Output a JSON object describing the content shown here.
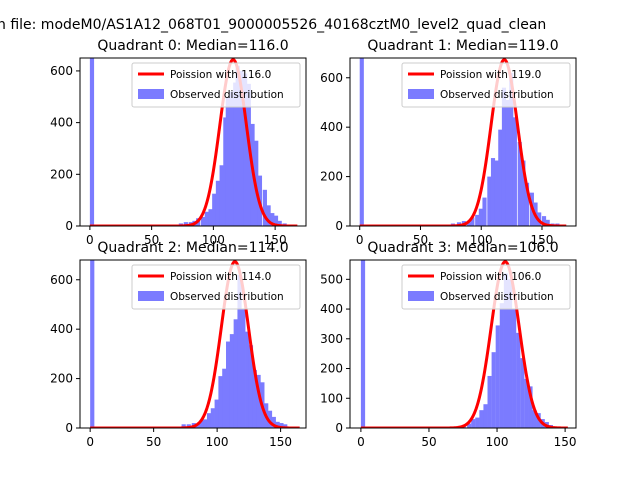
{
  "figure": {
    "suptitle": "n file: modeM0/AS1A12_068T01_9000005526_40168cztM0_level2_quad_clean"
  },
  "colors": {
    "histogram": "#7b7bff",
    "poisson_line": "#ff0000",
    "axes": "#000000"
  },
  "chart_data": [
    {
      "type": "bar",
      "title": "Quadrant 0: Median=116.0",
      "xlim": [
        -8,
        175
      ],
      "ylim": [
        0,
        650
      ],
      "xticks": [
        0,
        50,
        100,
        150
      ],
      "yticks": [
        0,
        200,
        400,
        600
      ],
      "bin_width": 3.4,
      "legend_position": "top-right",
      "series": [
        {
          "name": "Poission with 116.0",
          "kind": "line",
          "mean": 116.0,
          "x_range": [
            0,
            168
          ]
        },
        {
          "name": "Observed distribution",
          "kind": "histogram",
          "bins": [
            {
              "x": 0,
              "y": 650
            },
            {
              "x": 68,
              "y": 5
            },
            {
              "x": 72,
              "y": 10
            },
            {
              "x": 76,
              "y": 15
            },
            {
              "x": 80,
              "y": 15
            },
            {
              "x": 83,
              "y": 20
            },
            {
              "x": 86,
              "y": 30
            },
            {
              "x": 90,
              "y": 35
            },
            {
              "x": 93,
              "y": 55
            },
            {
              "x": 96,
              "y": 65
            },
            {
              "x": 99,
              "y": 125
            },
            {
              "x": 102,
              "y": 175
            },
            {
              "x": 105,
              "y": 235
            },
            {
              "x": 108,
              "y": 420
            },
            {
              "x": 110,
              "y": 500
            },
            {
              "x": 113,
              "y": 520
            },
            {
              "x": 116,
              "y": 555
            },
            {
              "x": 118,
              "y": 620
            },
            {
              "x": 121,
              "y": 600
            },
            {
              "x": 124,
              "y": 590
            },
            {
              "x": 127,
              "y": 550
            },
            {
              "x": 130,
              "y": 395
            },
            {
              "x": 133,
              "y": 330
            },
            {
              "x": 136,
              "y": 195
            },
            {
              "x": 140,
              "y": 140
            },
            {
              "x": 143,
              "y": 80
            },
            {
              "x": 146,
              "y": 50
            },
            {
              "x": 149,
              "y": 40
            },
            {
              "x": 152,
              "y": 20
            },
            {
              "x": 156,
              "y": 10
            },
            {
              "x": 160,
              "y": 5
            },
            {
              "x": 164,
              "y": 3
            }
          ]
        }
      ]
    },
    {
      "type": "bar",
      "title": "Quadrant 1: Median=119.0",
      "xlim": [
        -8,
        178
      ],
      "ylim": [
        0,
        680
      ],
      "xticks": [
        0,
        50,
        100,
        150
      ],
      "yticks": [
        0,
        200,
        400,
        600
      ],
      "bin_width": 3.4,
      "legend_position": "top-right",
      "series": [
        {
          "name": "Poission with 119.0",
          "kind": "line",
          "mean": 119.0,
          "x_range": [
            0,
            170
          ]
        },
        {
          "name": "Observed distribution",
          "kind": "histogram",
          "bins": [
            {
              "x": 0,
              "y": 680
            },
            {
              "x": 75,
              "y": 10
            },
            {
              "x": 80,
              "y": 15
            },
            {
              "x": 84,
              "y": 20
            },
            {
              "x": 88,
              "y": 15
            },
            {
              "x": 91,
              "y": 35
            },
            {
              "x": 95,
              "y": 45
            },
            {
              "x": 98,
              "y": 70
            },
            {
              "x": 101,
              "y": 115
            },
            {
              "x": 105,
              "y": 200
            },
            {
              "x": 108,
              "y": 275
            },
            {
              "x": 111,
              "y": 265
            },
            {
              "x": 114,
              "y": 390
            },
            {
              "x": 117,
              "y": 560
            },
            {
              "x": 120,
              "y": 510
            },
            {
              "x": 123,
              "y": 620
            },
            {
              "x": 126,
              "y": 440
            },
            {
              "x": 130,
              "y": 340
            },
            {
              "x": 133,
              "y": 265
            },
            {
              "x": 136,
              "y": 175
            },
            {
              "x": 140,
              "y": 135
            },
            {
              "x": 143,
              "y": 95
            },
            {
              "x": 146,
              "y": 55
            },
            {
              "x": 150,
              "y": 40
            },
            {
              "x": 153,
              "y": 25
            },
            {
              "x": 157,
              "y": 10
            },
            {
              "x": 161,
              "y": 10
            },
            {
              "x": 165,
              "y": 5
            }
          ]
        }
      ]
    },
    {
      "type": "bar",
      "title": "Quadrant 2: Median=114.0",
      "xlim": [
        -8,
        170
      ],
      "ylim": [
        0,
        680
      ],
      "xticks": [
        0,
        50,
        100,
        150
      ],
      "yticks": [
        0,
        200,
        400,
        600
      ],
      "bin_width": 3.3,
      "legend_position": "top-right",
      "series": [
        {
          "name": "Poission with 114.0",
          "kind": "line",
          "mean": 114.0,
          "x_range": [
            0,
            165
          ]
        },
        {
          "name": "Observed distribution",
          "kind": "histogram",
          "bins": [
            {
              "x": 0,
              "y": 680
            },
            {
              "x": 68,
              "y": 5
            },
            {
              "x": 72,
              "y": 15
            },
            {
              "x": 76,
              "y": 15
            },
            {
              "x": 80,
              "y": 20
            },
            {
              "x": 83,
              "y": 15
            },
            {
              "x": 86,
              "y": 30
            },
            {
              "x": 89,
              "y": 35
            },
            {
              "x": 92,
              "y": 60
            },
            {
              "x": 95,
              "y": 80
            },
            {
              "x": 98,
              "y": 115
            },
            {
              "x": 101,
              "y": 210
            },
            {
              "x": 104,
              "y": 240
            },
            {
              "x": 107,
              "y": 350
            },
            {
              "x": 110,
              "y": 380
            },
            {
              "x": 113,
              "y": 440
            },
            {
              "x": 116,
              "y": 620
            },
            {
              "x": 119,
              "y": 480
            },
            {
              "x": 122,
              "y": 390
            },
            {
              "x": 125,
              "y": 335
            },
            {
              "x": 128,
              "y": 235
            },
            {
              "x": 131,
              "y": 215
            },
            {
              "x": 134,
              "y": 185
            },
            {
              "x": 137,
              "y": 100
            },
            {
              "x": 140,
              "y": 70
            },
            {
              "x": 143,
              "y": 45
            },
            {
              "x": 146,
              "y": 25
            },
            {
              "x": 149,
              "y": 20
            },
            {
              "x": 152,
              "y": 15
            },
            {
              "x": 156,
              "y": 5
            },
            {
              "x": 160,
              "y": 3
            }
          ]
        }
      ]
    },
    {
      "type": "bar",
      "title": "Quadrant 3: Median=106.0",
      "xlim": [
        -8,
        158
      ],
      "ylim": [
        0,
        565
      ],
      "xticks": [
        0,
        50,
        100,
        150
      ],
      "yticks": [
        0,
        100,
        200,
        300,
        400,
        500
      ],
      "bin_width": 3.1,
      "legend_position": "top-right",
      "series": [
        {
          "name": "Poission with 106.0",
          "kind": "line",
          "mean": 106.0,
          "x_range": [
            0,
            152
          ]
        },
        {
          "name": "Observed distribution",
          "kind": "histogram",
          "bins": [
            {
              "x": 0,
              "y": 565
            },
            {
              "x": 66,
              "y": 5
            },
            {
              "x": 70,
              "y": 5
            },
            {
              "x": 74,
              "y": 10
            },
            {
              "x": 78,
              "y": 15
            },
            {
              "x": 81,
              "y": 30
            },
            {
              "x": 84,
              "y": 35
            },
            {
              "x": 87,
              "y": 60
            },
            {
              "x": 90,
              "y": 80
            },
            {
              "x": 93,
              "y": 175
            },
            {
              "x": 96,
              "y": 255
            },
            {
              "x": 99,
              "y": 345
            },
            {
              "x": 102,
              "y": 420
            },
            {
              "x": 105,
              "y": 520
            },
            {
              "x": 108,
              "y": 500
            },
            {
              "x": 111,
              "y": 400
            },
            {
              "x": 114,
              "y": 320
            },
            {
              "x": 117,
              "y": 235
            },
            {
              "x": 120,
              "y": 165
            },
            {
              "x": 123,
              "y": 140
            },
            {
              "x": 126,
              "y": 60
            },
            {
              "x": 129,
              "y": 50
            },
            {
              "x": 132,
              "y": 30
            },
            {
              "x": 135,
              "y": 20
            },
            {
              "x": 138,
              "y": 10
            },
            {
              "x": 141,
              "y": 5
            },
            {
              "x": 145,
              "y": 3
            }
          ]
        }
      ]
    }
  ]
}
